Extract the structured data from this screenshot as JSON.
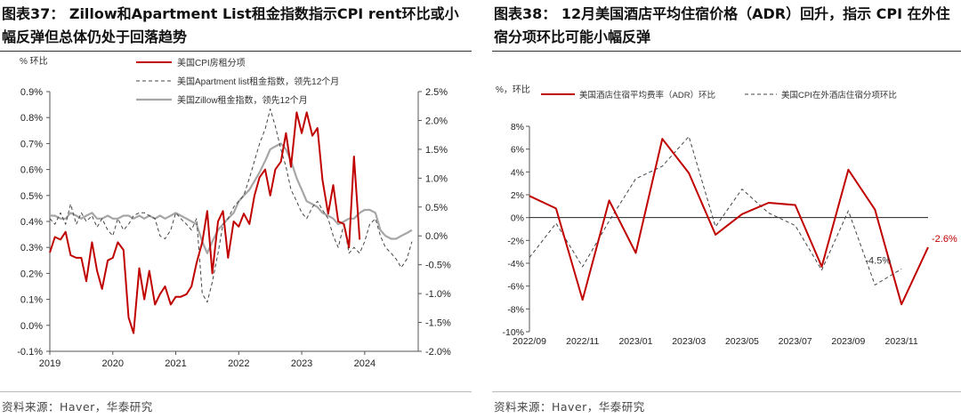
{
  "left": {
    "title": "图表37： Zillow和Apartment List租金指数指示CPI rent环比或小幅反弹但总体仍处于回落趋势",
    "source": "资料来源：Haver，华泰研究",
    "chart_data": {
      "type": "line",
      "unit_label": "% 环比",
      "xlim": [
        2019.0,
        2024.85
      ],
      "x_ticks": [
        2019,
        2020,
        2021,
        2022,
        2023,
        2024
      ],
      "x_tick_labels": [
        "2019",
        "2020",
        "2021",
        "2022",
        "2023",
        "2024"
      ],
      "y_left": {
        "lim": [
          -0.1,
          0.9
        ],
        "ticks": [
          -0.1,
          0.0,
          0.1,
          0.2,
          0.3,
          0.4,
          0.5,
          0.6,
          0.7,
          0.8,
          0.9
        ],
        "tick_labels": [
          "-0.1%",
          "0.0%",
          "0.1%",
          "0.2%",
          "0.3%",
          "0.4%",
          "0.5%",
          "0.6%",
          "0.7%",
          "0.8%",
          "0.9%"
        ]
      },
      "y_right": {
        "lim": [
          -2.0,
          2.5
        ],
        "ticks": [
          -2.0,
          -1.5,
          -1.0,
          -0.5,
          0.0,
          0.5,
          1.0,
          1.5,
          2.0,
          2.5
        ],
        "tick_labels": [
          "-2.0%",
          "-1.5%",
          "-1.0%",
          "-0.5%",
          "0.0%",
          "0.5%",
          "1.0%",
          "1.5%",
          "2.0%",
          "2.5%"
        ]
      },
      "series": [
        {
          "name": "美国CPI房租分项",
          "axis": "left",
          "color": "#c00000",
          "style": "solid",
          "width": 2,
          "x": [
            2019.0,
            2019.08,
            2019.17,
            2019.25,
            2019.33,
            2019.42,
            2019.5,
            2019.58,
            2019.67,
            2019.75,
            2019.83,
            2019.92,
            2020.0,
            2020.08,
            2020.17,
            2020.25,
            2020.33,
            2020.42,
            2020.5,
            2020.58,
            2020.67,
            2020.75,
            2020.83,
            2020.92,
            2021.0,
            2021.08,
            2021.17,
            2021.25,
            2021.33,
            2021.42,
            2021.5,
            2021.58,
            2021.67,
            2021.75,
            2021.83,
            2021.92,
            2022.0,
            2022.08,
            2022.17,
            2022.25,
            2022.33,
            2022.42,
            2022.5,
            2022.58,
            2022.67,
            2022.75,
            2022.83,
            2022.92,
            2023.0,
            2023.08,
            2023.17,
            2023.25,
            2023.33,
            2023.42,
            2023.5,
            2023.58,
            2023.67,
            2023.75,
            2023.83,
            2023.92
          ],
          "y": [
            0.28,
            0.34,
            0.33,
            0.36,
            0.27,
            0.26,
            0.26,
            0.17,
            0.32,
            0.21,
            0.14,
            0.25,
            0.26,
            0.32,
            0.29,
            0.03,
            -0.03,
            0.22,
            0.1,
            0.21,
            0.08,
            0.12,
            0.15,
            0.08,
            0.11,
            0.11,
            0.12,
            0.15,
            0.24,
            0.32,
            0.44,
            0.2,
            0.4,
            0.44,
            0.26,
            0.4,
            0.38,
            0.43,
            0.39,
            0.5,
            0.57,
            0.6,
            0.5,
            0.6,
            0.63,
            0.74,
            0.61,
            0.82,
            0.74,
            0.82,
            0.73,
            0.76,
            0.56,
            0.43,
            0.54,
            0.4,
            0.39,
            0.3,
            0.65,
            0.33
          ]
        },
        {
          "name": "美国Apartment list租金指数，领先12个月",
          "axis": "right",
          "color": "#444444",
          "style": "dashed",
          "width": 1,
          "x": [
            2019.0,
            2019.08,
            2019.17,
            2019.25,
            2019.33,
            2019.42,
            2019.5,
            2019.58,
            2019.67,
            2019.75,
            2019.83,
            2019.92,
            2020.0,
            2020.08,
            2020.17,
            2020.25,
            2020.33,
            2020.42,
            2020.5,
            2020.58,
            2020.67,
            2020.75,
            2020.83,
            2020.92,
            2021.0,
            2021.08,
            2021.17,
            2021.25,
            2021.33,
            2021.42,
            2021.5,
            2021.58,
            2021.67,
            2021.75,
            2021.83,
            2021.92,
            2022.0,
            2022.08,
            2022.17,
            2022.25,
            2022.33,
            2022.42,
            2022.5,
            2022.58,
            2022.67,
            2022.75,
            2022.83,
            2022.92,
            2023.0,
            2023.08,
            2023.17,
            2023.25,
            2023.33,
            2023.42,
            2023.5,
            2023.58,
            2023.67,
            2023.75,
            2023.83,
            2023.92,
            2024.0,
            2024.08,
            2024.17,
            2024.25,
            2024.33,
            2024.42,
            2024.5,
            2024.58,
            2024.67,
            2024.75
          ],
          "y": [
            0.3,
            0.2,
            0.4,
            0.2,
            0.55,
            0.2,
            0.4,
            0.25,
            0.35,
            0.15,
            0.3,
            0.1,
            0.0,
            0.3,
            0.1,
            0.2,
            0.35,
            0.4,
            0.4,
            0.35,
            0.3,
            0.0,
            -0.05,
            0.1,
            0.4,
            0.3,
            0.2,
            0.1,
            0.3,
            -1.0,
            -1.15,
            -0.8,
            -0.3,
            0.2,
            0.3,
            0.5,
            0.6,
            0.7,
            1.0,
            1.3,
            1.6,
            1.85,
            2.2,
            1.9,
            1.5,
            1.2,
            0.8,
            0.6,
            0.4,
            0.3,
            0.5,
            0.6,
            0.45,
            0.3,
            0.0,
            -0.2,
            0.2,
            -0.3,
            -0.2,
            -0.3,
            -0.1,
            0.2,
            0.3,
            0.0,
            -0.2,
            -0.3,
            -0.4,
            -0.55,
            -0.4,
            -0.1
          ]
        },
        {
          "name": "美国Zillow租金指数，领先12个月",
          "axis": "right",
          "color": "#a6a6a6",
          "style": "solid",
          "width": 2.2,
          "x": [
            2019.0,
            2019.08,
            2019.17,
            2019.25,
            2019.33,
            2019.42,
            2019.5,
            2019.58,
            2019.67,
            2019.75,
            2019.83,
            2019.92,
            2020.0,
            2020.08,
            2020.17,
            2020.25,
            2020.33,
            2020.42,
            2020.5,
            2020.58,
            2020.67,
            2020.75,
            2020.83,
            2020.92,
            2021.0,
            2021.08,
            2021.17,
            2021.25,
            2021.33,
            2021.42,
            2021.5,
            2021.58,
            2021.67,
            2021.75,
            2021.83,
            2021.92,
            2022.0,
            2022.08,
            2022.17,
            2022.25,
            2022.33,
            2022.42,
            2022.5,
            2022.58,
            2022.67,
            2022.75,
            2022.83,
            2022.92,
            2023.0,
            2023.08,
            2023.17,
            2023.25,
            2023.33,
            2023.42,
            2023.5,
            2023.58,
            2023.67,
            2023.75,
            2023.83,
            2023.92,
            2024.0,
            2024.08,
            2024.17,
            2024.25,
            2024.33,
            2024.42,
            2024.5,
            2024.58,
            2024.67,
            2024.75
          ],
          "y": [
            0.35,
            0.35,
            0.3,
            0.3,
            0.4,
            0.35,
            0.3,
            0.35,
            0.4,
            0.3,
            0.3,
            0.35,
            0.3,
            0.3,
            0.35,
            0.35,
            0.3,
            0.35,
            0.3,
            0.35,
            0.3,
            0.35,
            0.3,
            0.35,
            0.4,
            0.35,
            0.3,
            0.25,
            0.2,
            -0.1,
            -0.3,
            -0.1,
            0.1,
            0.2,
            0.3,
            0.4,
            0.6,
            0.7,
            0.8,
            0.95,
            1.1,
            1.3,
            1.5,
            1.55,
            1.6,
            1.5,
            1.3,
            1.0,
            0.8,
            0.6,
            0.55,
            0.5,
            0.4,
            0.35,
            0.3,
            0.2,
            0.25,
            0.3,
            0.3,
            0.4,
            0.45,
            0.45,
            0.4,
            0.1,
            0.0,
            -0.05,
            -0.05,
            0.0,
            0.05,
            0.1
          ]
        }
      ]
    }
  },
  "right": {
    "title": "图表38：  12月美国酒店平均住宿价格（ADR）回升，指示 CPI 在外住宿分项环比可能小幅反弹",
    "source": "资料来源：Haver，华泰研究",
    "chart_data": {
      "type": "line",
      "unit_label": "%，环比",
      "categories": [
        "2022/09",
        "2022/10",
        "2022/11",
        "2022/12",
        "2023/01",
        "2023/02",
        "2023/03",
        "2023/04",
        "2023/05",
        "2023/06",
        "2023/07",
        "2023/08",
        "2023/09",
        "2023/10",
        "2023/11",
        "2023/12"
      ],
      "x_tick_labels": [
        "2022/09",
        "2022/11",
        "2023/01",
        "2023/03",
        "2023/05",
        "2023/07",
        "2023/09",
        "2023/11"
      ],
      "ylim": [
        -10,
        8
      ],
      "y_ticks": [
        -10,
        -8,
        -6,
        -4,
        -2,
        0,
        2,
        4,
        6,
        8
      ],
      "y_tick_labels": [
        "-10%",
        "-8%",
        "-6%",
        "-4%",
        "-2%",
        "0%",
        "2%",
        "4%",
        "6%",
        "8%"
      ],
      "series": [
        {
          "name": "美国酒店住宿平均费率（ADR）环比",
          "color": "#c00000",
          "style": "solid",
          "width": 2,
          "values": [
            1.9,
            0.8,
            -7.2,
            1.5,
            -3.1,
            6.9,
            3.9,
            -1.5,
            0.3,
            1.3,
            1.1,
            -4.3,
            4.2,
            0.7,
            -7.6,
            -2.6
          ]
        },
        {
          "name": "美国CPI在外酒店住宿分项环比",
          "color": "#444444",
          "style": "dashed",
          "width": 1,
          "values": [
            -3.5,
            -0.5,
            -4.3,
            -0.3,
            3.4,
            4.5,
            7.1,
            -0.8,
            2.5,
            0.4,
            -0.7,
            -4.6,
            0.6,
            -5.9,
            -4.5,
            null
          ]
        }
      ],
      "annotations": [
        {
          "text": "-4.5%",
          "category": "2023/11",
          "value": -4.5,
          "color": "#333333"
        },
        {
          "text": "-2.6%",
          "category": "2023/12",
          "value": -2.6,
          "color": "#c00000"
        }
      ]
    }
  }
}
